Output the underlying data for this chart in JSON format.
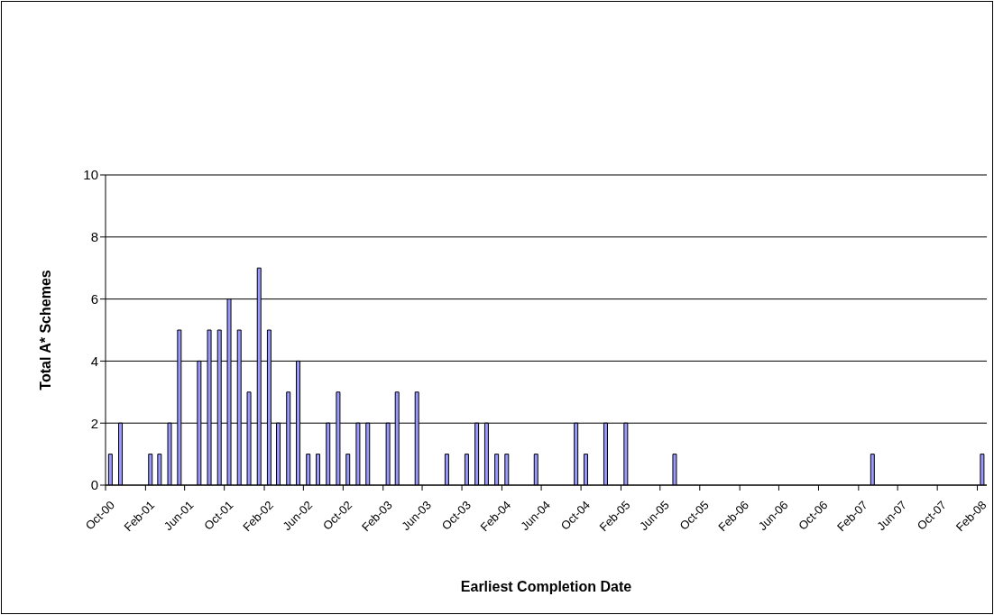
{
  "chart_data": {
    "type": "bar",
    "xlabel": "Earliest Completion Date",
    "ylabel": "Total A* Schemes",
    "x": [
      "2000-10-16",
      "2000-11-16",
      "2001-02-16",
      "2001-03-16",
      "2001-04-16",
      "2001-05-16",
      "2001-07-16",
      "2001-08-16",
      "2001-09-16",
      "2001-10-16",
      "2001-11-16",
      "2001-12-16",
      "2002-01-16",
      "2002-02-16",
      "2002-03-16",
      "2002-04-16",
      "2002-05-16",
      "2002-06-16",
      "2002-07-16",
      "2002-08-16",
      "2002-09-16",
      "2002-10-16",
      "2002-11-16",
      "2002-12-16",
      "2003-02-16",
      "2003-03-16",
      "2003-05-16",
      "2003-08-16",
      "2003-10-16",
      "2003-11-16",
      "2003-12-16",
      "2004-01-16",
      "2004-02-16",
      "2004-05-16",
      "2004-09-16",
      "2004-10-16",
      "2004-12-16",
      "2005-02-16",
      "2005-07-16",
      "2007-03-16",
      "2008-02-16"
    ],
    "values": [
      1,
      2,
      1,
      1,
      2,
      5,
      4,
      5,
      5,
      6,
      5,
      3,
      7,
      5,
      2,
      3,
      4,
      1,
      1,
      2,
      3,
      1,
      2,
      2,
      2,
      3,
      3,
      1,
      1,
      2,
      2,
      1,
      1,
      1,
      2,
      1,
      2,
      2,
      1,
      1,
      1
    ],
    "color": "#9999ff",
    "xlim": [
      "2000-10-01",
      "2008-03-01"
    ],
    "xticks": [
      {
        "value": "2000-10-01",
        "label": "Oct-00"
      },
      {
        "value": "2001-02-01",
        "label": "Feb-01"
      },
      {
        "value": "2001-06-01",
        "label": "Jun-01"
      },
      {
        "value": "2001-10-01",
        "label": "Oct-01"
      },
      {
        "value": "2002-02-01",
        "label": "Feb-02"
      },
      {
        "value": "2002-06-01",
        "label": "Jun-02"
      },
      {
        "value": "2002-10-01",
        "label": "Oct-02"
      },
      {
        "value": "2003-02-01",
        "label": "Feb-03"
      },
      {
        "value": "2003-06-01",
        "label": "Jun-03"
      },
      {
        "value": "2003-10-01",
        "label": "Oct-03"
      },
      {
        "value": "2004-02-01",
        "label": "Feb-04"
      },
      {
        "value": "2004-06-01",
        "label": "Jun-04"
      },
      {
        "value": "2004-10-01",
        "label": "Oct-04"
      },
      {
        "value": "2005-02-01",
        "label": "Feb-05"
      },
      {
        "value": "2005-06-01",
        "label": "Jun-05"
      },
      {
        "value": "2005-10-01",
        "label": "Oct-05"
      },
      {
        "value": "2006-02-01",
        "label": "Feb-06"
      },
      {
        "value": "2006-06-01",
        "label": "Jun-06"
      },
      {
        "value": "2006-10-01",
        "label": "Oct-06"
      },
      {
        "value": "2007-02-01",
        "label": "Feb-07"
      },
      {
        "value": "2007-06-01",
        "label": "Jun-07"
      },
      {
        "value": "2007-10-01",
        "label": "Oct-07"
      },
      {
        "value": "2008-02-01",
        "label": "Feb-08"
      }
    ],
    "ylim": [
      0,
      10
    ],
    "yticks": [
      0,
      2,
      4,
      6,
      8,
      10
    ],
    "grid": "y"
  }
}
